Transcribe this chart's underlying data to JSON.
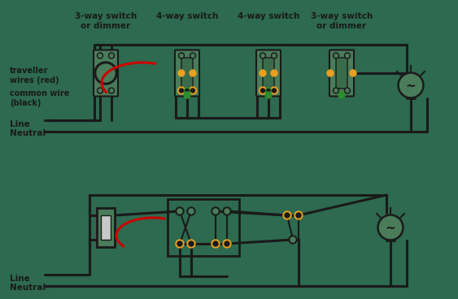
{
  "bg_color": "#2d6a4f",
  "wire_color": "#1a1a1a",
  "red_wire": "#cc0000",
  "orange_dot": "#e8a020",
  "green_dot": "#2d8c2d",
  "switch_fill": "#4a7c5a",
  "switch_border": "#1a1a1a",
  "text_color": "#1a1a1a",
  "title_top": [
    "3-way switch\nor dimmer",
    "4-way switch",
    "4-way switch",
    "3-way switch\nor dimmer"
  ],
  "labels_left": [
    "traveller\nwires (red)",
    "common wire\n(black)",
    "Line",
    "Neutral"
  ],
  "labels_left2": [
    "Line",
    "Neutral"
  ],
  "fig_w": 5.63,
  "fig_h": 3.68,
  "dpi": 100
}
